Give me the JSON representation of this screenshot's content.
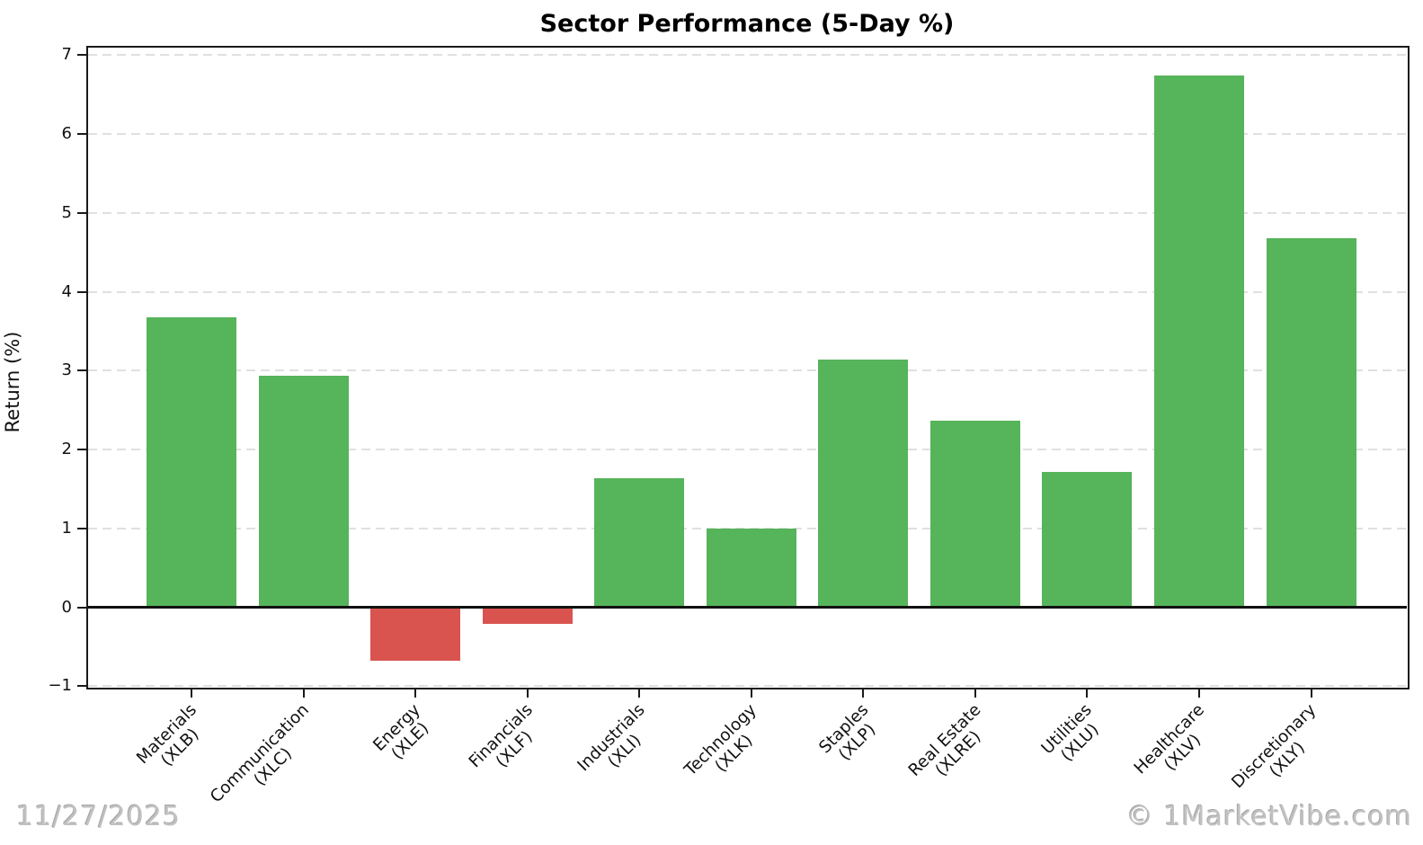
{
  "title": "Sector Performance (5-Day %)",
  "watermark_date": "11/27/2025",
  "watermark_brand": "© 1MarketVibe.com",
  "colors": {
    "positive_bar": "#56b45a",
    "negative_bar": "#d9534f",
    "gridline": "#e0e0e0",
    "axis": "#1a1a1a",
    "watermark": "#c1c1c1",
    "background": "#ffffff"
  },
  "chart_data": {
    "type": "bar",
    "title": "Sector Performance (5-Day %)",
    "xlabel": "",
    "ylabel": "Return (%)",
    "ylim": [
      -1.03,
      7.1
    ],
    "grid": true,
    "legend": false,
    "ytick_labels": [
      "−1",
      "0",
      "1",
      "2",
      "3",
      "4",
      "5",
      "6",
      "7"
    ],
    "yticks": [
      -1,
      0,
      1,
      2,
      3,
      4,
      5,
      6,
      7
    ],
    "categories": [
      "Materials (XLB)",
      "Communication (XLC)",
      "Energy (XLE)",
      "Financials (XLF)",
      "Industrials (XLI)",
      "Technology (XLK)",
      "Staples (XLP)",
      "Real Estate (XLRE)",
      "Utilities (XLU)",
      "Healthcare (XLV)",
      "Discretionary (XLY)"
    ],
    "tick_label_lines": [
      [
        "Materials",
        "(XLB)"
      ],
      [
        "Communication",
        "(XLC)"
      ],
      [
        "Energy",
        "(XLE)"
      ],
      [
        "Financials",
        "(XLF)"
      ],
      [
        "Industrials",
        "(XLI)"
      ],
      [
        "Technology",
        "(XLK)"
      ],
      [
        "Staples",
        "(XLP)"
      ],
      [
        "Real Estate",
        "(XLRE)"
      ],
      [
        "Utilities",
        "(XLU)"
      ],
      [
        "Healthcare",
        "(XLV)"
      ],
      [
        "Discretionary",
        "(XLY)"
      ]
    ],
    "values": [
      3.68,
      2.94,
      -0.67,
      -0.21,
      1.63,
      1.0,
      3.14,
      2.37,
      1.71,
      6.74,
      4.68
    ],
    "bar_color_rule": "green if value >= 0 else red"
  }
}
